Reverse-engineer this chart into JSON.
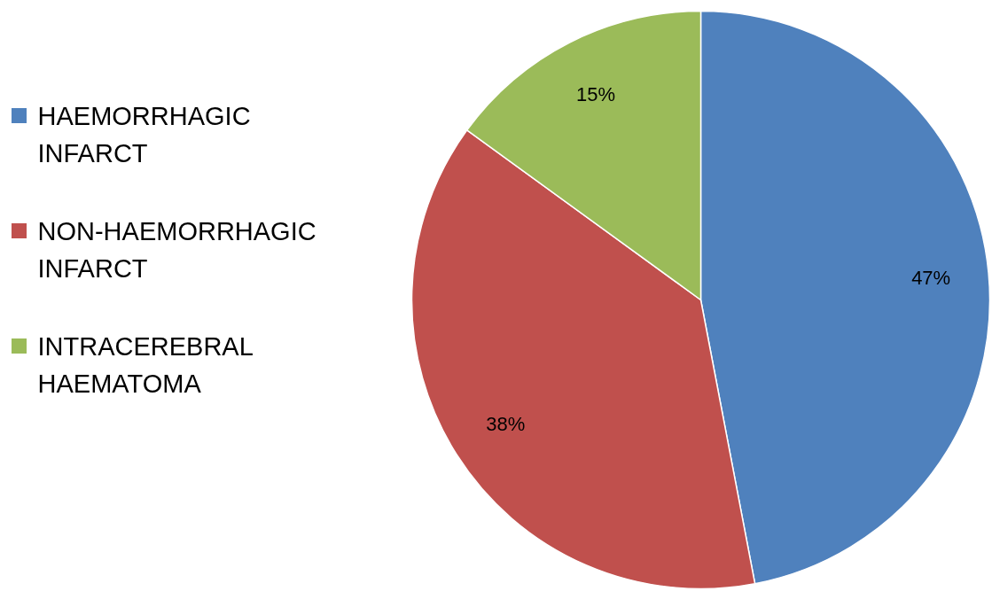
{
  "chart_data": {
    "type": "pie",
    "categories": [
      "HAEMORRHAGIC INFARCT",
      "NON-HAEMORRHAGIC INFARCT",
      "INTRACEREBRAL HAEMATOMA"
    ],
    "values": [
      47,
      38,
      15
    ],
    "colors": [
      "#4f81bd",
      "#c0504d",
      "#9bbb59"
    ],
    "value_labels": [
      "47%",
      "38%",
      "15%"
    ],
    "legend": "left"
  }
}
